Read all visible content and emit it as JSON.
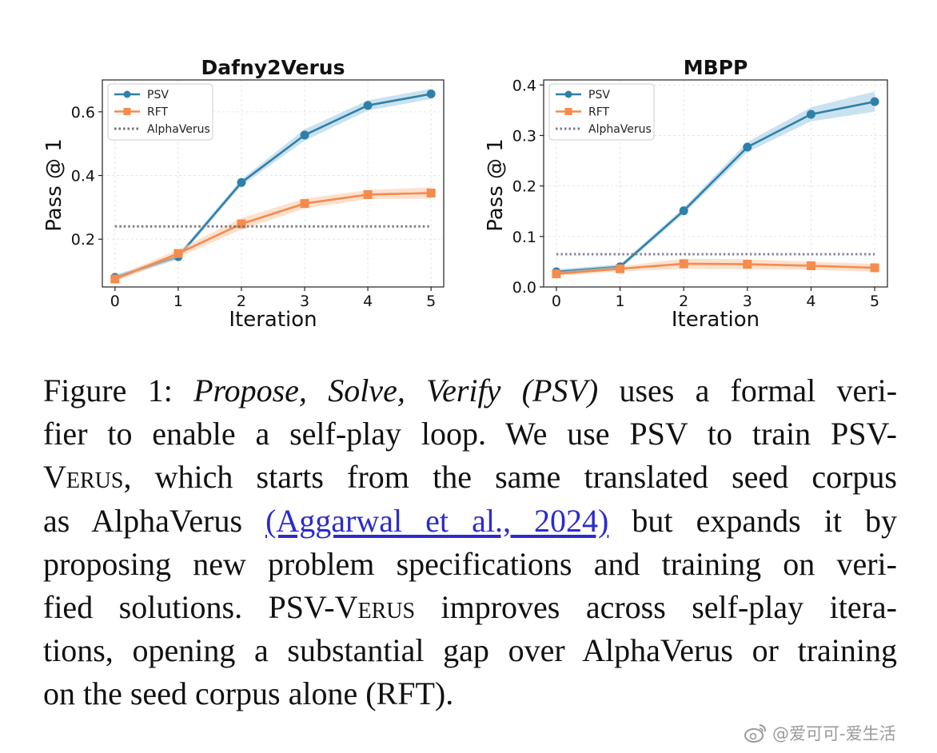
{
  "chart_data": [
    {
      "type": "line",
      "title": "Dafny2Verus",
      "xlabel": "Iteration",
      "ylabel": "Pass @ 1",
      "x": [
        0,
        1,
        2,
        3,
        4,
        5
      ],
      "xlim": [
        -0.2,
        5.2
      ],
      "ylim": [
        0.05,
        0.7
      ],
      "yticks": [
        0.2,
        0.4,
        0.6
      ],
      "ytick_labels": [
        "0.2",
        "0.4",
        "0.6"
      ],
      "xtick_labels": [
        "0",
        "1",
        "2",
        "3",
        "4",
        "5"
      ],
      "grid": true,
      "legend": "top-left",
      "series": [
        {
          "name": "PSV",
          "values": [
            0.08,
            0.145,
            0.378,
            0.527,
            0.62,
            0.656
          ],
          "band": [
            0.008,
            0.008,
            0.01,
            0.018,
            0.016,
            0.016
          ],
          "color": "#2f80a8",
          "band_color": "#9ecae1",
          "marker": "circle"
        },
        {
          "name": "RFT",
          "values": [
            0.075,
            0.155,
            0.248,
            0.312,
            0.34,
            0.345
          ],
          "band": [
            0.008,
            0.012,
            0.018,
            0.016,
            0.014,
            0.018
          ],
          "color": "#f58b4c",
          "band_color": "#fcc9a8",
          "marker": "square"
        },
        {
          "name": "AlphaVerus",
          "values": [
            0.24,
            0.24,
            0.24,
            0.24,
            0.24,
            0.24
          ],
          "color": "#707070",
          "style": "dotted"
        }
      ]
    },
    {
      "type": "line",
      "title": "MBPP",
      "xlabel": "Iteration",
      "ylabel": "Pass @ 1",
      "x": [
        0,
        1,
        2,
        3,
        4,
        5
      ],
      "xlim": [
        -0.2,
        5.2
      ],
      "ylim": [
        0,
        0.41
      ],
      "yticks": [
        0.0,
        0.1,
        0.2,
        0.3,
        0.4
      ],
      "ytick_labels": [
        "0.0",
        "0.1",
        "0.2",
        "0.3",
        "0.4"
      ],
      "xtick_labels": [
        "0",
        "1",
        "2",
        "3",
        "4",
        "5"
      ],
      "grid": true,
      "legend": "top-left",
      "series": [
        {
          "name": "PSV",
          "values": [
            0.03,
            0.04,
            0.151,
            0.277,
            0.342,
            0.367
          ],
          "band": [
            0.005,
            0.005,
            0.006,
            0.01,
            0.014,
            0.02
          ],
          "color": "#2f80a8",
          "band_color": "#9ecae1",
          "marker": "circle"
        },
        {
          "name": "RFT",
          "values": [
            0.026,
            0.036,
            0.046,
            0.045,
            0.042,
            0.038
          ],
          "band": [
            0.004,
            0.005,
            0.01,
            0.01,
            0.008,
            0.008
          ],
          "color": "#f58b4c",
          "band_color": "#fcc9a8",
          "marker": "square"
        },
        {
          "name": "AlphaVerus",
          "values": [
            0.065,
            0.065,
            0.065,
            0.065,
            0.065,
            0.065
          ],
          "color": "#7a7a9a",
          "style": "dotted"
        }
      ]
    }
  ],
  "caption": {
    "lines": [
      {
        "parts": [
          {
            "text": "Figure 1: "
          },
          {
            "text": "Propose, Solve, Verify (PSV)",
            "style": "italic"
          },
          {
            "text": " uses a formal veri-"
          }
        ]
      },
      {
        "parts": [
          {
            "text": "fier to enable a self-play loop. We use PSV to train PSV-"
          }
        ]
      },
      {
        "parts": [
          {
            "text": "Verus",
            "style": "smallcaps"
          },
          {
            "text": ", which starts from the same translated seed corpus"
          }
        ]
      },
      {
        "parts": [
          {
            "text": "as AlphaVerus "
          },
          {
            "text": "(Aggarwal et al., 2024)",
            "style": "link"
          },
          {
            "text": " but expands it by"
          }
        ]
      },
      {
        "parts": [
          {
            "text": "proposing new problem specifications and training on veri-"
          }
        ]
      },
      {
        "parts": [
          {
            "text": "fied solutions. PSV-"
          },
          {
            "text": "Verus",
            "style": "smallcaps"
          },
          {
            "text": " improves across self-play itera-"
          }
        ]
      },
      {
        "parts": [
          {
            "text": "tions, opening a substantial gap over AlphaVerus or training"
          }
        ]
      },
      {
        "parts": [
          {
            "text": "on the seed corpus alone (RFT).",
            "last": true
          }
        ]
      }
    ]
  },
  "watermark": {
    "text": "@爱可可-爱生活",
    "icon": "weibo-icon"
  }
}
